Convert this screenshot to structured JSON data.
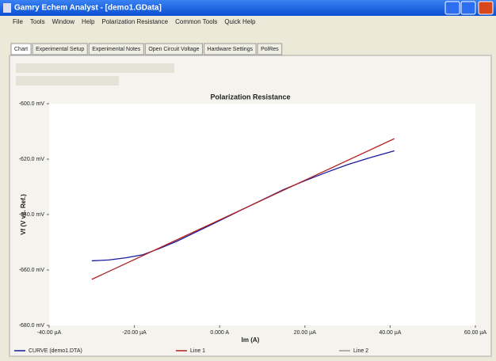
{
  "window": {
    "title": "Gamry Echem Analyst - [demo1.GData]"
  },
  "menu": [
    "File",
    "Tools",
    "Window",
    "Help",
    "Polarization Resistance",
    "Common Tools",
    "Quick Help"
  ],
  "tabs": [
    "Chart",
    "Experimental Setup",
    "Experimental Notes",
    "Open Circuit Voltage",
    "Hardware Settings",
    "PolRes"
  ],
  "chart_data": {
    "type": "line",
    "title": "Polarization Resistance",
    "x_label": "Im (A)",
    "y_label": "Vf (V vs. Ref.)",
    "xlim": [
      -4e-05,
      6e-05
    ],
    "xticks": [
      {
        "value": -4e-05,
        "label": "-40.00 µA"
      },
      {
        "value": -2e-05,
        "label": "-20.00 µA"
      },
      {
        "value": 0,
        "label": "0.000 A"
      },
      {
        "value": 2e-05,
        "label": "20.00 µA"
      },
      {
        "value": 4e-05,
        "label": "40.00 µA"
      },
      {
        "value": 6e-05,
        "label": "60.00 µA"
      }
    ],
    "ylim": [
      -0.68,
      -0.6
    ],
    "yticks": [
      {
        "value": -0.6,
        "label": "-600.0 mV"
      },
      {
        "value": -0.62,
        "label": "-620.0 mV"
      },
      {
        "value": -0.64,
        "label": "-640.0 mV"
      },
      {
        "value": -0.66,
        "label": "-660.0 mV"
      },
      {
        "value": -0.68,
        "label": "-680.0 mV"
      }
    ],
    "grid": false,
    "series": [
      {
        "name": "CURVE (demo1.DTA)",
        "color": "#1a1a9c",
        "x": [
          -3e-05,
          -2.6e-05,
          -2.2e-05,
          -1.8e-05,
          -1.4e-05,
          -1e-05,
          -5e-06,
          0,
          5e-06,
          1e-05,
          1.5e-05,
          2e-05,
          2.5e-05,
          3e-05,
          3.5e-05,
          4.1e-05
        ],
        "values": [
          -0.6567,
          -0.6564,
          -0.6556,
          -0.6545,
          -0.6522,
          -0.6496,
          -0.6459,
          -0.6422,
          -0.6384,
          -0.6347,
          -0.631,
          -0.6278,
          -0.6248,
          -0.622,
          -0.6196,
          -0.617
        ]
      },
      {
        "name": "Line 1",
        "color": "#b22222",
        "x": [
          -3e-05,
          4.1e-05
        ],
        "values": [
          -0.6634,
          -0.6126
        ]
      },
      {
        "name": "Line 2",
        "color": "#999999",
        "x": [],
        "values": []
      }
    ]
  }
}
